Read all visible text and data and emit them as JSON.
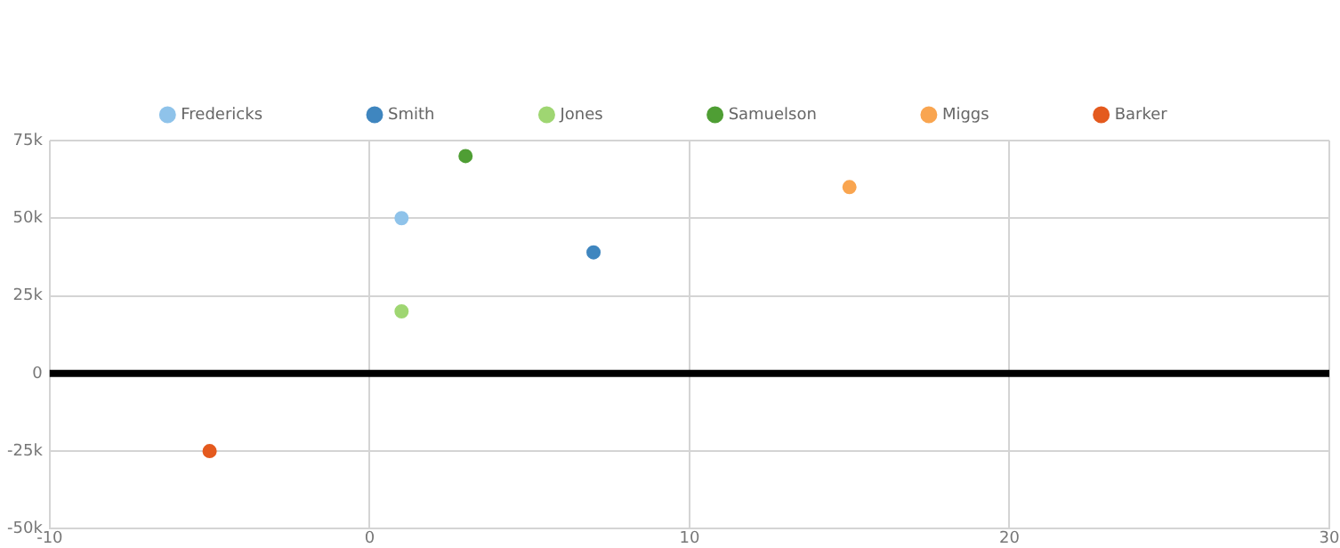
{
  "chart_data": {
    "type": "scatter",
    "legend": "top",
    "marker": "circle",
    "grid": true,
    "xlim": [
      -10,
      30
    ],
    "xticks": [
      -10,
      0,
      10,
      20,
      30
    ],
    "ylim": [
      -50000,
      75000
    ],
    "yticks": [
      {
        "value": -50000,
        "label": "-50k"
      },
      {
        "value": -25000,
        "label": "-25k"
      },
      {
        "value": 0,
        "label": "0"
      },
      {
        "value": 25000,
        "label": "25k"
      },
      {
        "value": 50000,
        "label": "50k"
      },
      {
        "value": 75000,
        "label": "75k"
      }
    ],
    "ref_lines": [
      {
        "axis": "y",
        "value": 0,
        "color": "#000000"
      }
    ],
    "series": [
      {
        "name": "Fredericks",
        "color": "#8fc3ea",
        "x": [
          1
        ],
        "values": [
          50000
        ]
      },
      {
        "name": "Smith",
        "color": "#3f86bf",
        "x": [
          7
        ],
        "values": [
          39000
        ]
      },
      {
        "name": "Jones",
        "color": "#9fd672",
        "x": [
          1
        ],
        "values": [
          20000
        ]
      },
      {
        "name": "Samuelson",
        "color": "#4f9e34",
        "x": [
          3
        ],
        "values": [
          70000
        ]
      },
      {
        "name": "Miggs",
        "color": "#f9a550",
        "x": [
          15
        ],
        "values": [
          60000
        ]
      },
      {
        "name": "Barker",
        "color": "#e45a1e",
        "x": [
          -5
        ],
        "values": [
          -25000
        ]
      }
    ]
  }
}
